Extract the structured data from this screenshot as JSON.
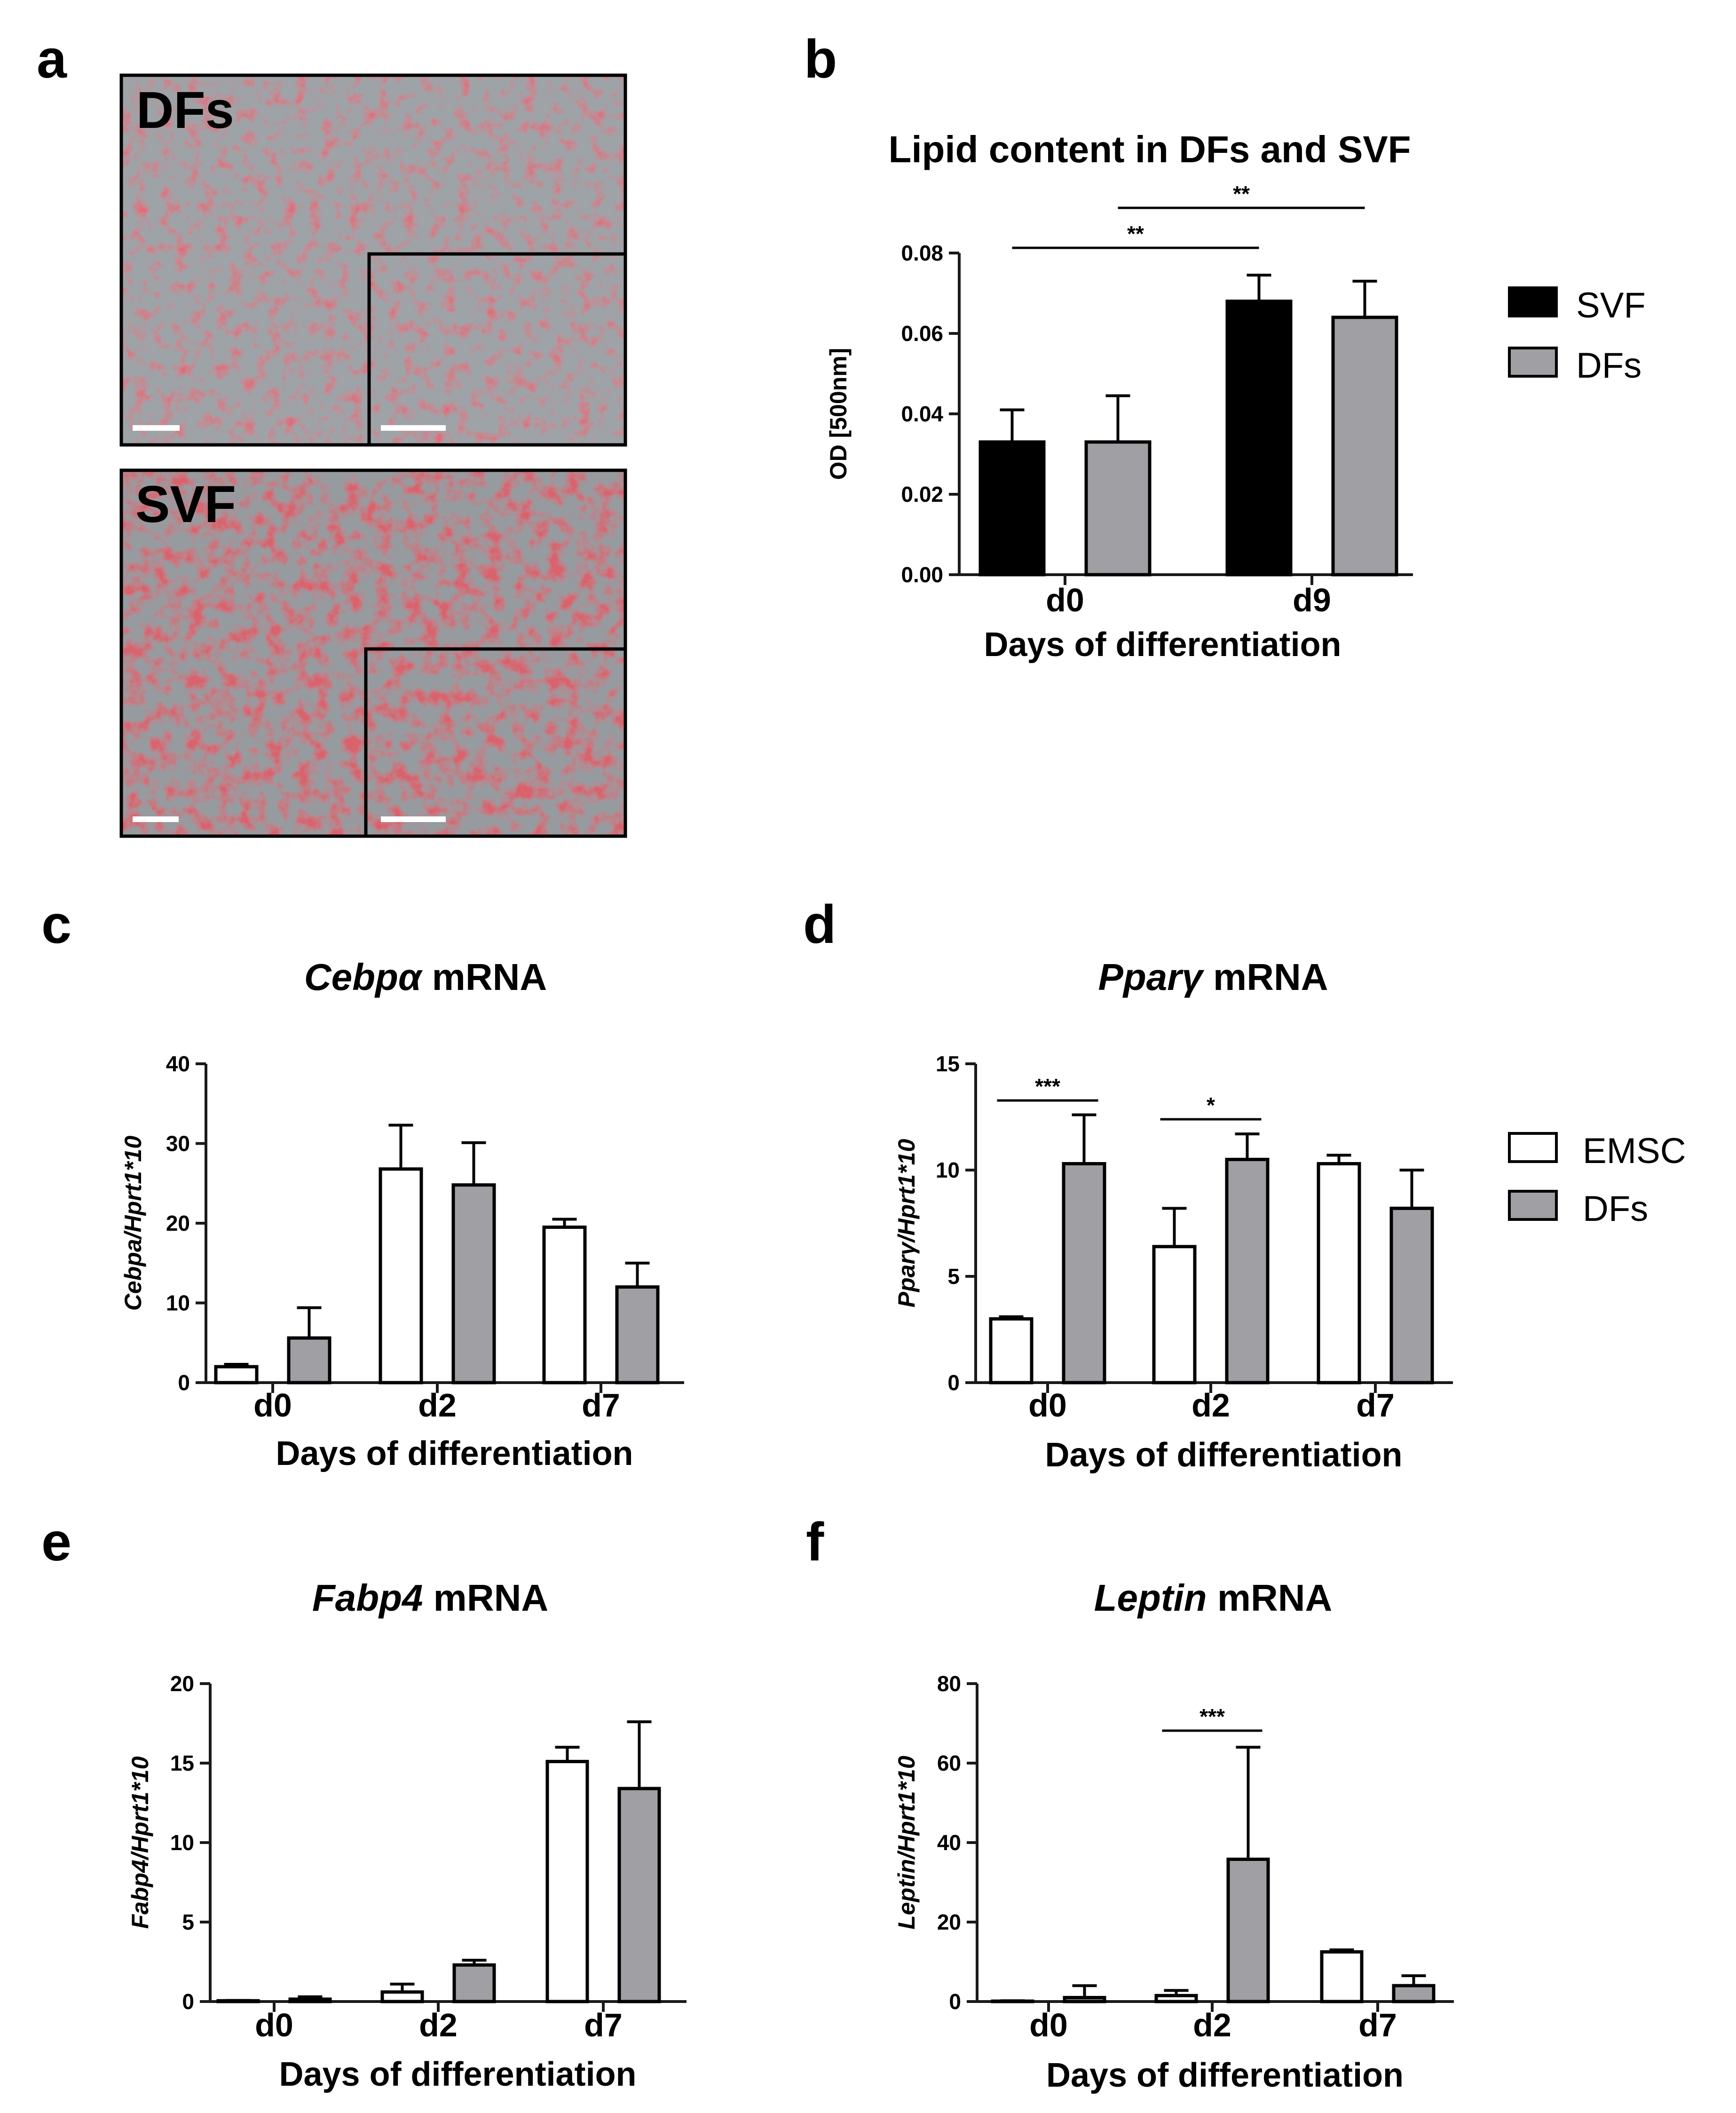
{
  "panels": {
    "a": {
      "letter": "a",
      "images": [
        {
          "label": "DFs"
        },
        {
          "label": "SVF"
        }
      ]
    },
    "b": {
      "letter": "b"
    },
    "c": {
      "letter": "c"
    },
    "d": {
      "letter": "d"
    },
    "e": {
      "letter": "e"
    },
    "f": {
      "letter": "f"
    }
  },
  "legends": [
    {
      "entries": [
        {
          "name": "SVF",
          "fill": "#000000"
        },
        {
          "name": "DFs",
          "fill": "#a0a0a4"
        }
      ]
    },
    {
      "entries": [
        {
          "name": "EMSC",
          "fill": "#ffffff"
        },
        {
          "name": "DFs",
          "fill": "#a0a0a4"
        }
      ]
    }
  ],
  "colors": {
    "svf": "#000000",
    "emsc": "#ffffff",
    "dfs": "#a0a0a4",
    "axis": "#1a1a1a",
    "stain": "#c0323a"
  },
  "chart_data": [
    {
      "id": "b",
      "type": "bar",
      "title": "Lipid content in DFs and SVF",
      "xlabel": "Days of differentiation",
      "ylabel": "OD [500nm]",
      "categories": [
        "d0",
        "d9"
      ],
      "ylim": [
        0,
        0.08
      ],
      "yticks": [
        "0.00",
        "0.02",
        "0.04",
        "0.06",
        "0.08"
      ],
      "series": [
        {
          "name": "SVF",
          "values": [
            0.033,
            0.068
          ],
          "errors": [
            0.008,
            0.0065
          ],
          "color": "#000000"
        },
        {
          "name": "DFs",
          "values": [
            0.033,
            0.064
          ],
          "errors": [
            0.0115,
            0.009
          ],
          "color": "#a0a0a4"
        }
      ],
      "significance": [
        {
          "label": "**",
          "from": [
            0,
            0
          ],
          "to": [
            1,
            0
          ]
        },
        {
          "label": "**",
          "from": [
            0,
            1
          ],
          "to": [
            1,
            1
          ]
        }
      ]
    },
    {
      "id": "c",
      "type": "bar",
      "title": "Cebpα mRNA",
      "title_italic": "Cebpα",
      "title_rest": " mRNA",
      "xlabel": "Days of differentiation",
      "ylabel": "Cebpa/Hprt1*10",
      "categories": [
        "d0",
        "d2",
        "d7"
      ],
      "ylim": [
        0,
        40
      ],
      "yticks": [
        "0",
        "10",
        "20",
        "30",
        "40"
      ],
      "series": [
        {
          "name": "EMSC",
          "values": [
            2.0,
            26.8,
            19.5
          ],
          "errors": [
            0.3,
            5.5,
            1.0
          ],
          "color": "#ffffff"
        },
        {
          "name": "DFs",
          "values": [
            5.6,
            24.8,
            12.0
          ],
          "errors": [
            3.8,
            5.3,
            3.0
          ],
          "color": "#a0a0a4"
        }
      ],
      "significance": []
    },
    {
      "id": "d",
      "type": "bar",
      "title": "Pparγ mRNA",
      "title_italic": "Pparγ",
      "title_rest": " mRNA",
      "xlabel": "Days of differentiation",
      "ylabel": "Pparγ/Hprt1*10",
      "categories": [
        "d0",
        "d2",
        "d7"
      ],
      "ylim": [
        0,
        15
      ],
      "yticks": [
        "0",
        "5",
        "10",
        "15"
      ],
      "series": [
        {
          "name": "EMSC",
          "values": [
            3.0,
            6.4,
            10.3
          ],
          "errors": [
            0.1,
            1.8,
            0.4
          ],
          "color": "#ffffff"
        },
        {
          "name": "DFs",
          "values": [
            10.3,
            10.5,
            8.2
          ],
          "errors": [
            2.3,
            1.2,
            1.8
          ],
          "color": "#a0a0a4"
        }
      ],
      "significance": [
        {
          "label": "***",
          "from": [
            0,
            0
          ],
          "to": [
            0,
            1
          ]
        },
        {
          "label": "*",
          "from": [
            1,
            0
          ],
          "to": [
            1,
            1
          ]
        }
      ]
    },
    {
      "id": "e",
      "type": "bar",
      "title": "Fabp4 mRNA",
      "title_italic": "Fabp4",
      "title_rest": " mRNA",
      "xlabel": "Days of differentiation",
      "ylabel": "Fabp4/Hprt1*10",
      "categories": [
        "d0",
        "d2",
        "d7"
      ],
      "ylim": [
        0,
        20
      ],
      "yticks": [
        "0",
        "5",
        "10",
        "15",
        "20"
      ],
      "series": [
        {
          "name": "EMSC",
          "values": [
            0.05,
            0.6,
            15.1
          ],
          "errors": [
            0.02,
            0.5,
            0.9
          ],
          "color": "#ffffff"
        },
        {
          "name": "DFs",
          "values": [
            0.15,
            2.3,
            13.4
          ],
          "errors": [
            0.15,
            0.3,
            4.2
          ],
          "color": "#a0a0a4"
        }
      ],
      "significance": []
    },
    {
      "id": "f",
      "type": "bar",
      "title": "Leptin mRNA",
      "title_italic": "Leptin",
      "title_rest": " mRNA",
      "xlabel": "Days of differentiation",
      "ylabel": "Leptin/Hprt1*10",
      "categories": [
        "d0",
        "d2",
        "d7"
      ],
      "ylim": [
        0,
        80
      ],
      "yticks": [
        "0",
        "20",
        "40",
        "60",
        "80"
      ],
      "series": [
        {
          "name": "EMSC",
          "values": [
            0.1,
            1.5,
            12.5
          ],
          "errors": [
            0.1,
            1.3,
            0.5
          ],
          "color": "#ffffff"
        },
        {
          "name": "DFs",
          "values": [
            1.0,
            35.8,
            4.0
          ],
          "errors": [
            3.0,
            28.2,
            2.5
          ],
          "color": "#a0a0a4"
        }
      ],
      "significance": [
        {
          "label": "***",
          "from": [
            1,
            0
          ],
          "to": [
            1,
            1
          ]
        }
      ]
    }
  ]
}
